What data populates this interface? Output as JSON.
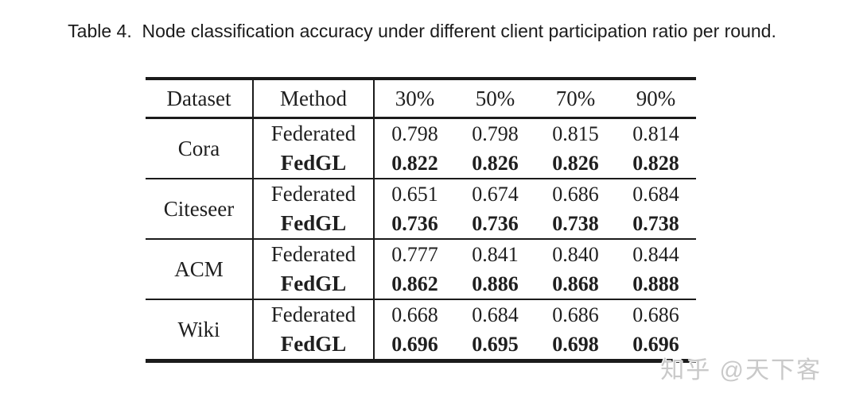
{
  "caption": "Table 4.  Node classification accuracy under different client participation ratio per round.",
  "colors": {
    "text": "#1f1f1f",
    "rule": "#1b1b1b",
    "watermark": "#c9c9c9",
    "background": "#ffffff"
  },
  "table": {
    "headers": [
      "Dataset",
      "Method",
      "30%",
      "50%",
      "70%",
      "90%"
    ],
    "groups": [
      {
        "dataset": "Cora",
        "rows": [
          {
            "method": "Federated",
            "bold": false,
            "values": [
              "0.798",
              "0.798",
              "0.815",
              "0.814"
            ]
          },
          {
            "method": "FedGL",
            "bold": true,
            "values": [
              "0.822",
              "0.826",
              "0.826",
              "0.828"
            ]
          }
        ]
      },
      {
        "dataset": "Citeseer",
        "rows": [
          {
            "method": "Federated",
            "bold": false,
            "values": [
              "0.651",
              "0.674",
              "0.686",
              "0.684"
            ]
          },
          {
            "method": "FedGL",
            "bold": true,
            "values": [
              "0.736",
              "0.736",
              "0.738",
              "0.738"
            ]
          }
        ]
      },
      {
        "dataset": "ACM",
        "rows": [
          {
            "method": "Federated",
            "bold": false,
            "values": [
              "0.777",
              "0.841",
              "0.840",
              "0.844"
            ]
          },
          {
            "method": "FedGL",
            "bold": true,
            "values": [
              "0.862",
              "0.886",
              "0.868",
              "0.888"
            ]
          }
        ]
      },
      {
        "dataset": "Wiki",
        "rows": [
          {
            "method": "Federated",
            "bold": false,
            "values": [
              "0.668",
              "0.684",
              "0.686",
              "0.686"
            ]
          },
          {
            "method": "FedGL",
            "bold": true,
            "values": [
              "0.696",
              "0.695",
              "0.698",
              "0.696"
            ]
          }
        ]
      }
    ]
  },
  "watermark": "知乎 @天下客"
}
